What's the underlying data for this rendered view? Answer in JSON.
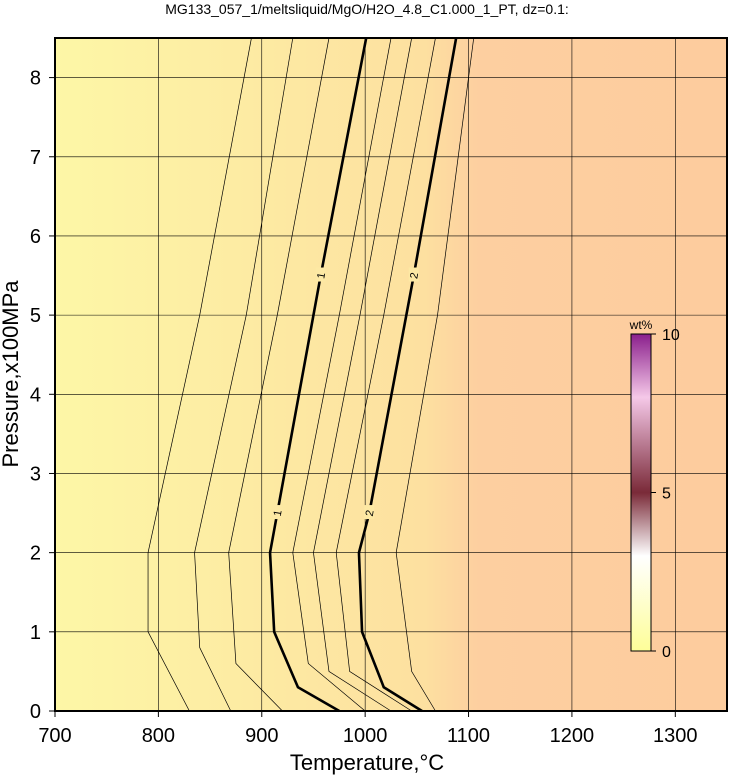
{
  "chart_data": {
    "type": "contour",
    "title": "MG133_057_1/meltsliquid/MgO/H2O_4.8_C1.000_1_PT, dz=0.1:",
    "x_label": "Temperature,°C",
    "y_label": "Pressure,x100MPa",
    "xlim": [
      700,
      1350
    ],
    "ylim": [
      0,
      8.5
    ],
    "xticks": [
      700,
      800,
      900,
      1000,
      1100,
      1200,
      1300
    ],
    "yticks": [
      0,
      1,
      2,
      3,
      4,
      5,
      6,
      7,
      8
    ],
    "grid": true,
    "color": "#000000",
    "contours": [
      {
        "level": 0.3,
        "x": [
          830,
          790,
          790,
          840,
          890
        ],
        "y": [
          0,
          1,
          2,
          5,
          8.5
        ]
      },
      {
        "level": 0.5,
        "x": [
          870,
          840,
          835,
          885,
          930
        ],
        "y": [
          0,
          0.8,
          2,
          5,
          8.5
        ]
      },
      {
        "level": 0.7,
        "x": [
          920,
          875,
          868,
          915,
          965
        ],
        "y": [
          0,
          0.6,
          2,
          5,
          8.5
        ]
      },
      {
        "level": 1,
        "label": "1",
        "x": [
          975,
          935,
          912,
          908,
          915,
          957,
          1001
        ],
        "y": [
          0,
          0.3,
          1,
          2,
          2.5,
          5.5,
          8.5
        ]
      },
      {
        "level": 1.25,
        "x": [
          1000,
          945,
          930,
          975,
          1025
        ],
        "y": [
          0,
          0.6,
          2,
          5,
          8.5
        ]
      },
      {
        "level": 1.5,
        "x": [
          1025,
          965,
          950,
          995,
          1045
        ],
        "y": [
          0,
          0.5,
          2,
          5,
          8.5
        ]
      },
      {
        "level": 1.75,
        "x": [
          1045,
          985,
          972,
          1018,
          1068
        ],
        "y": [
          0,
          0.5,
          2,
          5,
          8.5
        ]
      },
      {
        "level": 2,
        "label": "2",
        "x": [
          1055,
          1018,
          997,
          994,
          1004,
          1047,
          1088
        ],
        "y": [
          0,
          0.3,
          1,
          2,
          2.5,
          5.5,
          8.5
        ]
      },
      {
        "level": 2.2,
        "x": [
          1068,
          1045,
          1030,
          1070,
          1105
        ],
        "y": [
          0,
          0.5,
          2,
          5,
          8.5
        ]
      }
    ],
    "colorbar": {
      "label": "wt%",
      "lim": [
        0,
        10
      ],
      "ticks": [
        0,
        5,
        10
      ]
    }
  }
}
